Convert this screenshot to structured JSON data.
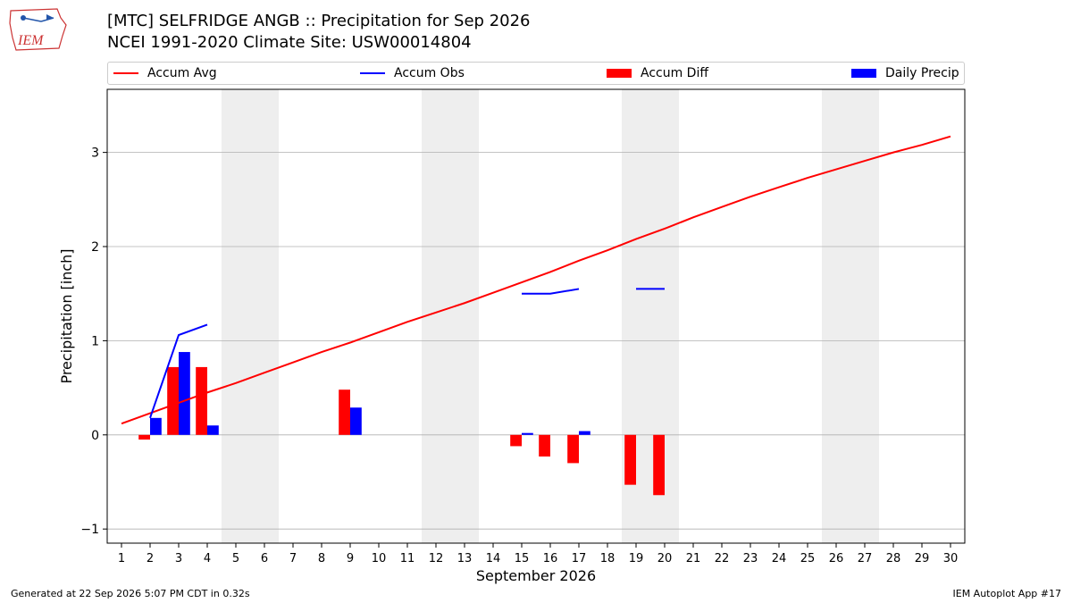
{
  "header": {
    "title": "[MTC] SELFRIDGE ANGB :: Precipitation for Sep 2026",
    "subtitle": "NCEI 1991-2020 Climate Site: USW00014804",
    "logo_text": "IEM"
  },
  "footer": {
    "generated": "Generated at 22 Sep 2026 5:07 PM CDT in 0.32s",
    "app": "IEM Autoplot App #17"
  },
  "colors": {
    "accum_avg": "#ff0000",
    "accum_obs": "#0000ff",
    "accum_diff": "#ff0000",
    "daily_precip": "#0000ff",
    "weekend_band": "#eeeeee",
    "grid": "#b0b0b0"
  },
  "chart_data": {
    "type": "bar",
    "xlabel": "September 2026",
    "ylabel": "Precipitation [inch]",
    "xlim": [
      0.5,
      30.5
    ],
    "ylim": [
      -1.15,
      3.67
    ],
    "x_ticks": [
      1,
      2,
      3,
      4,
      5,
      6,
      7,
      8,
      9,
      10,
      11,
      12,
      13,
      14,
      15,
      16,
      17,
      18,
      19,
      20,
      21,
      22,
      23,
      24,
      25,
      26,
      27,
      28,
      29,
      30
    ],
    "y_ticks": [
      -1,
      0,
      1,
      2,
      3
    ],
    "grid": "horizontal",
    "legend_position": "top",
    "weekend_bands": [
      [
        5,
        6
      ],
      [
        12,
        13
      ],
      [
        19,
        20
      ],
      [
        26,
        27
      ]
    ],
    "legend": [
      {
        "label": "Accum Avg",
        "kind": "line",
        "color": "#ff0000"
      },
      {
        "label": "Accum Obs",
        "kind": "line",
        "color": "#0000ff"
      },
      {
        "label": "Accum Diff",
        "kind": "bar",
        "color": "#ff0000"
      },
      {
        "label": "Daily Precip",
        "kind": "bar",
        "color": "#0000ff"
      }
    ],
    "series": [
      {
        "name": "Accum Avg",
        "type": "line",
        "color": "#ff0000",
        "x": [
          1,
          2,
          3,
          4,
          5,
          6,
          7,
          8,
          9,
          10,
          11,
          12,
          13,
          14,
          15,
          16,
          17,
          18,
          19,
          20,
          21,
          22,
          23,
          24,
          25,
          26,
          27,
          28,
          29,
          30
        ],
        "values": [
          0.12,
          0.23,
          0.34,
          0.45,
          0.55,
          0.66,
          0.77,
          0.88,
          0.98,
          1.09,
          1.2,
          1.3,
          1.4,
          1.51,
          1.62,
          1.73,
          1.85,
          1.96,
          2.08,
          2.19,
          2.31,
          2.42,
          2.53,
          2.63,
          2.73,
          2.82,
          2.91,
          3.0,
          3.08,
          3.17
        ]
      },
      {
        "name": "Accum Obs",
        "type": "line",
        "color": "#0000ff",
        "segments": [
          {
            "x": [
              2,
              3,
              4
            ],
            "values": [
              0.18,
              1.06,
              1.17
            ]
          },
          {
            "x": [
              15,
              16,
              17
            ],
            "values": [
              1.5,
              1.5,
              1.55
            ]
          },
          {
            "x": [
              19,
              20
            ],
            "values": [
              1.55,
              1.55
            ]
          }
        ]
      },
      {
        "name": "Accum Diff",
        "type": "bar",
        "color": "#ff0000",
        "x": [
          2,
          3,
          4,
          9,
          15,
          16,
          17,
          19,
          20
        ],
        "values": [
          -0.05,
          0.72,
          0.72,
          0.48,
          -0.12,
          -0.23,
          -0.3,
          -0.53,
          -0.64
        ]
      },
      {
        "name": "Daily Precip",
        "type": "bar",
        "color": "#0000ff",
        "x": [
          2,
          3,
          4,
          9,
          15,
          17
        ],
        "values": [
          0.18,
          0.88,
          0.1,
          0.29,
          0.02,
          0.04
        ]
      }
    ]
  }
}
